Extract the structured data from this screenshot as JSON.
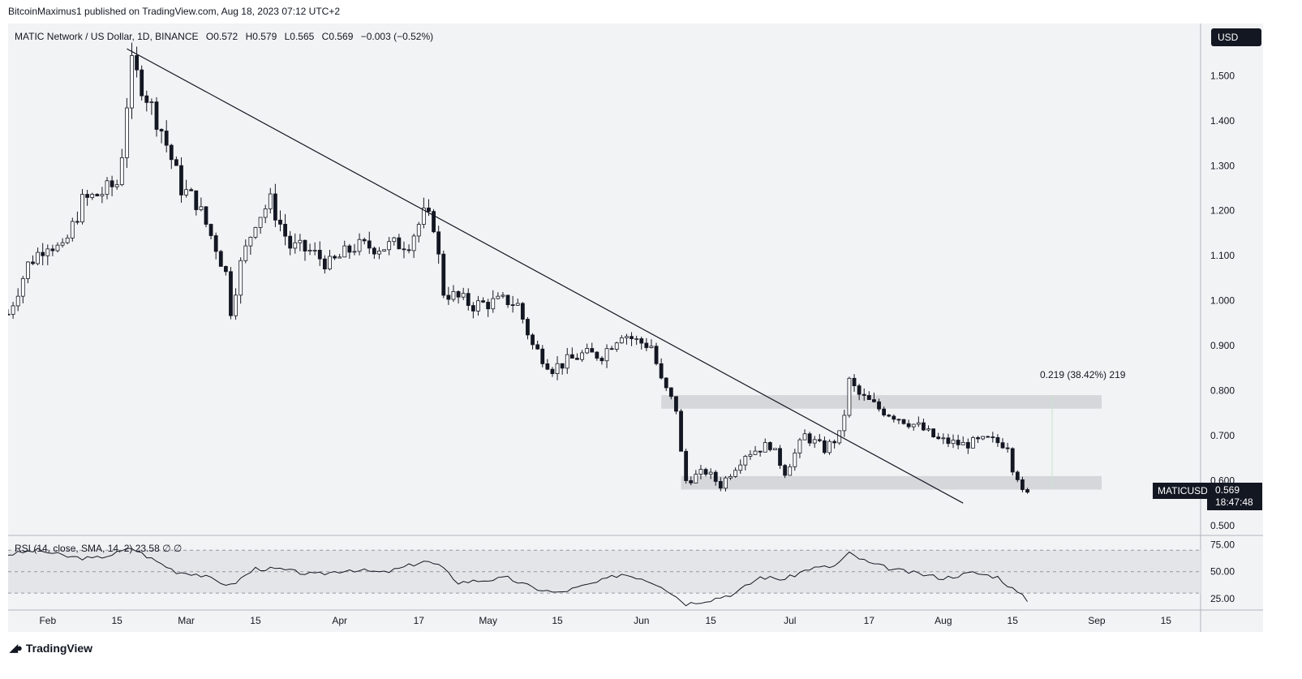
{
  "header": {
    "published": "BitcoinMaximus1 published on TradingView.com, Aug 18, 2023 07:12 UTC+2"
  },
  "footer": {
    "brand": "TradingView"
  },
  "toolbar": {
    "currency_button": "USD"
  },
  "legend": {
    "symbol": "MATIC Network / US Dollar, 1D, BINANCE",
    "o_label": "O",
    "o": "0.572",
    "h_label": "H",
    "h": "0.579",
    "l_label": "L",
    "l": "0.565",
    "c_label": "C",
    "c": "0.569",
    "change": "−0.003 (−0.52%)"
  },
  "rsi_legend": {
    "label": "RSI (14, close, SMA, 14, 2)",
    "value": "23.58",
    "extra": "∅ ∅"
  },
  "price_tag": {
    "ticker": "MATICUSD",
    "price": "0.569",
    "countdown": "18:47:48"
  },
  "measure": {
    "label": "0.219 (38.42%) 219"
  },
  "colors": {
    "chart_bg": "#f2f3f5",
    "candle_up": "#ffffff",
    "candle_down": "#131722",
    "wick": "#131722",
    "zone": "#d5d7db",
    "rsi_band": "#e3e5e8"
  },
  "chart_data": {
    "type": "candlestick",
    "ylim": [
      0.48,
      1.58
    ],
    "y_ticks": [
      "1.500",
      "1.400",
      "1.300",
      "1.200",
      "1.100",
      "1.000",
      "0.900",
      "0.800",
      "0.700",
      "0.600",
      "0.500"
    ],
    "x_labels": [
      "Feb",
      "15",
      "Mar",
      "15",
      "Apr",
      "17",
      "May",
      "15",
      "Jun",
      "15",
      "Jul",
      "17",
      "Aug",
      "15",
      "Sep",
      "15"
    ],
    "x_label_dates": [
      "2023-02-01",
      "2023-02-15",
      "2023-03-01",
      "2023-03-15",
      "2023-04-01",
      "2023-04-17",
      "2023-05-01",
      "2023-05-15",
      "2023-06-01",
      "2023-06-15",
      "2023-07-01",
      "2023-07-17",
      "2023-08-01",
      "2023-08-15",
      "2023-09-01",
      "2023-09-15"
    ],
    "x_range": [
      "2023-01-24",
      "2023-09-22"
    ],
    "series_anchors": [
      [
        "2023-01-24",
        0.97
      ],
      [
        "2023-01-28",
        1.08
      ],
      [
        "2023-02-01",
        1.13
      ],
      [
        "2023-02-04",
        1.11
      ],
      [
        "2023-02-08",
        1.22
      ],
      [
        "2023-02-12",
        1.24
      ],
      [
        "2023-02-15",
        1.26
      ],
      [
        "2023-02-16",
        1.33
      ],
      [
        "2023-02-17",
        1.44
      ],
      [
        "2023-02-18",
        1.52
      ],
      [
        "2023-02-20",
        1.48
      ],
      [
        "2023-02-24",
        1.38
      ],
      [
        "2023-02-28",
        1.25
      ],
      [
        "2023-03-03",
        1.22
      ],
      [
        "2023-03-07",
        1.12
      ],
      [
        "2023-03-09",
        1.06
      ],
      [
        "2023-03-10",
        0.98
      ],
      [
        "2023-03-12",
        1.08
      ],
      [
        "2023-03-15",
        1.18
      ],
      [
        "2023-03-18",
        1.22
      ],
      [
        "2023-03-22",
        1.12
      ],
      [
        "2023-03-26",
        1.11
      ],
      [
        "2023-03-30",
        1.08
      ],
      [
        "2023-04-04",
        1.12
      ],
      [
        "2023-04-10",
        1.12
      ],
      [
        "2023-04-15",
        1.13
      ],
      [
        "2023-04-18",
        1.19
      ],
      [
        "2023-04-20",
        1.17
      ],
      [
        "2023-04-22",
        1.02
      ],
      [
        "2023-04-28",
        0.99
      ],
      [
        "2023-05-05",
        1.0
      ],
      [
        "2023-05-07",
        0.99
      ],
      [
        "2023-05-10",
        0.9
      ],
      [
        "2023-05-14",
        0.85
      ],
      [
        "2023-05-20",
        0.88
      ],
      [
        "2023-05-24",
        0.88
      ],
      [
        "2023-05-28",
        0.93
      ],
      [
        "2023-05-31",
        0.91
      ],
      [
        "2023-06-03",
        0.9
      ],
      [
        "2023-06-05",
        0.82
      ],
      [
        "2023-06-08",
        0.76
      ],
      [
        "2023-06-09",
        0.66
      ],
      [
        "2023-06-10",
        0.6
      ],
      [
        "2023-06-14",
        0.62
      ],
      [
        "2023-06-17",
        0.59
      ],
      [
        "2023-06-22",
        0.66
      ],
      [
        "2023-06-27",
        0.68
      ],
      [
        "2023-06-30",
        0.62
      ],
      [
        "2023-07-04",
        0.7
      ],
      [
        "2023-07-08",
        0.67
      ],
      [
        "2023-07-11",
        0.7
      ],
      [
        "2023-07-12",
        0.75
      ],
      [
        "2023-07-13",
        0.82
      ],
      [
        "2023-07-15",
        0.79
      ],
      [
        "2023-07-19",
        0.76
      ],
      [
        "2023-07-23",
        0.74
      ],
      [
        "2023-07-27",
        0.72
      ],
      [
        "2023-07-31",
        0.69
      ],
      [
        "2023-08-05",
        0.68
      ],
      [
        "2023-08-10",
        0.69
      ],
      [
        "2023-08-14",
        0.68
      ],
      [
        "2023-08-15",
        0.63
      ],
      [
        "2023-08-16",
        0.61
      ],
      [
        "2023-08-17",
        0.572
      ],
      [
        "2023-08-18",
        0.569
      ]
    ],
    "last_candle": {
      "date": "2023-08-18",
      "open": 0.572,
      "high": 0.579,
      "low": 0.565,
      "close": 0.569
    },
    "trendline": [
      [
        "2023-02-17",
        1.56
      ],
      [
        "2023-08-05",
        0.55
      ]
    ],
    "zones": [
      {
        "from": "2023-06-05",
        "to": "2023-09-02",
        "top": 0.79,
        "bottom": 0.76
      },
      {
        "from": "2023-06-09",
        "to": "2023-09-02",
        "top": 0.61,
        "bottom": 0.58
      }
    ],
    "measure_marker": {
      "date": "2023-08-23",
      "top": 0.79,
      "bottom": 0.58
    },
    "rsi": {
      "ylim": [
        15,
        80
      ],
      "y_ticks": [
        "75.00",
        "50.00",
        "25.00"
      ],
      "band": [
        30,
        70
      ],
      "anchors": [
        [
          "2023-01-24",
          66
        ],
        [
          "2023-01-30",
          70
        ],
        [
          "2023-02-05",
          64
        ],
        [
          "2023-02-10",
          62
        ],
        [
          "2023-02-14",
          66
        ],
        [
          "2023-02-18",
          72
        ],
        [
          "2023-02-22",
          62
        ],
        [
          "2023-02-27",
          50
        ],
        [
          "2023-03-03",
          48
        ],
        [
          "2023-03-10",
          37
        ],
        [
          "2023-03-15",
          53
        ],
        [
          "2023-03-20",
          52
        ],
        [
          "2023-03-27",
          47
        ],
        [
          "2023-04-03",
          52
        ],
        [
          "2023-04-10",
          49
        ],
        [
          "2023-04-14",
          54
        ],
        [
          "2023-04-18",
          60
        ],
        [
          "2023-04-21",
          56
        ],
        [
          "2023-04-25",
          40
        ],
        [
          "2023-05-05",
          44
        ],
        [
          "2023-05-10",
          35
        ],
        [
          "2023-05-15",
          30
        ],
        [
          "2023-05-23",
          40
        ],
        [
          "2023-05-28",
          48
        ],
        [
          "2023-06-01",
          44
        ],
        [
          "2023-06-05",
          37
        ],
        [
          "2023-06-10",
          20
        ],
        [
          "2023-06-15",
          24
        ],
        [
          "2023-06-20",
          30
        ],
        [
          "2023-06-25",
          45
        ],
        [
          "2023-06-30",
          43
        ],
        [
          "2023-07-05",
          53
        ],
        [
          "2023-07-10",
          55
        ],
        [
          "2023-07-13",
          67
        ],
        [
          "2023-07-17",
          58
        ],
        [
          "2023-07-22",
          52
        ],
        [
          "2023-07-27",
          48
        ],
        [
          "2023-08-01",
          44
        ],
        [
          "2023-08-07",
          49
        ],
        [
          "2023-08-12",
          45
        ],
        [
          "2023-08-15",
          34
        ],
        [
          "2023-08-18",
          23.58
        ]
      ]
    }
  }
}
